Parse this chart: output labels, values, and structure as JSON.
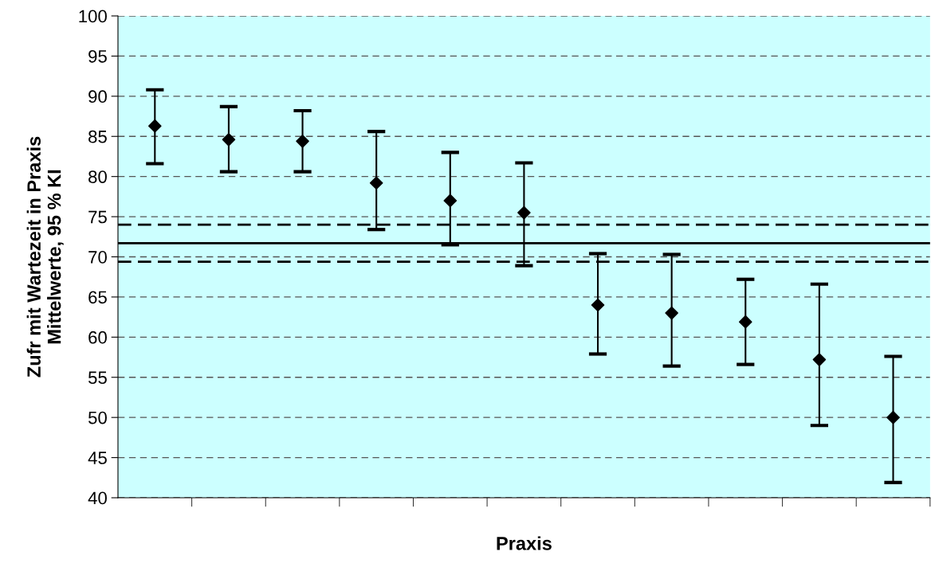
{
  "chart_data": {
    "type": "scatter",
    "xlabel": "Praxis",
    "ylabel": "Zufr mit Wartezeit in Praxis\nMittelwerte, 95 % KI",
    "categories": [
      null,
      null,
      null,
      null,
      null,
      null,
      null,
      null,
      null,
      null,
      null
    ],
    "series": [
      {
        "color": "#000000",
        "values": [
          86.3,
          84.6,
          84.4,
          79.2,
          77.0,
          75.5,
          64.0,
          63.0,
          61.9,
          57.2,
          50.0
        ],
        "errors": [
          [
            81.6,
            90.8
          ],
          [
            80.6,
            88.7
          ],
          [
            80.6,
            88.2
          ],
          [
            73.4,
            85.6
          ],
          [
            71.5,
            83.0
          ],
          [
            68.9,
            81.7
          ],
          [
            57.9,
            70.4
          ],
          [
            56.4,
            70.3
          ],
          [
            56.6,
            67.2
          ],
          [
            49.0,
            66.6
          ],
          [
            41.9,
            57.6
          ]
        ]
      }
    ],
    "marker": "diamond",
    "ylim": [
      40,
      100
    ],
    "yticks": [
      40,
      45,
      50,
      55,
      60,
      65,
      70,
      75,
      80,
      85,
      90,
      95,
      100
    ],
    "grid": "y",
    "ref_lines": [
      {
        "axis": "y",
        "value": 71.7,
        "color": "#000000",
        "line_style": "solid"
      },
      {
        "axis": "y",
        "value": 74.0,
        "color": "#000000",
        "line_style": "dashed"
      },
      {
        "axis": "y",
        "value": 69.4,
        "color": "#000000",
        "line_style": "dashed"
      }
    ]
  }
}
